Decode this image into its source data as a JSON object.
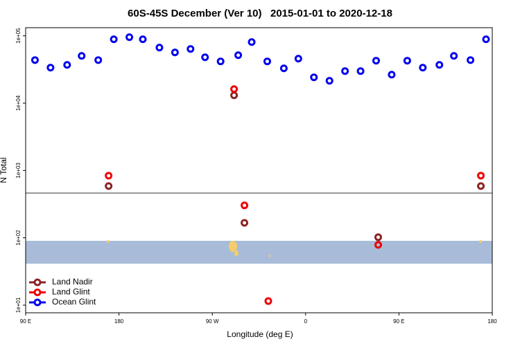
{
  "chart_data": {
    "type": "scatter",
    "title": "60S-45S December (Ver 10)   2015-01-01 to 2020-12-18",
    "x_label": "Longitude (deg E)",
    "y_label": "N Total",
    "log_y": true,
    "legend": "bottom-left",
    "xlim": [
      90,
      540
    ],
    "xticks": [
      {
        "value": 90,
        "label": "90 E"
      },
      {
        "value": 180,
        "label": "180"
      },
      {
        "value": 270,
        "label": "90 W"
      },
      {
        "value": 360,
        "label": "0"
      },
      {
        "value": 450,
        "label": "90 E"
      },
      {
        "value": 540,
        "label": "180"
      }
    ],
    "ylim": [
      7.7,
      132000
    ],
    "yticks": [
      {
        "value": 10,
        "label": "1e+01"
      },
      {
        "value": 100,
        "label": "1e+02"
      },
      {
        "value": 1000,
        "label": "1e+03"
      },
      {
        "value": 10000,
        "label": "1e+04"
      },
      {
        "value": 100000,
        "label": "1e+05"
      }
    ],
    "series": [
      {
        "name": "Land Nadir",
        "color": "#8b2323",
        "x": [
          170,
          291,
          301,
          430,
          529
        ],
        "values": [
          587,
          13060,
          167,
          102,
          587
        ]
      },
      {
        "name": "Land Glint",
        "color": "#ee0000",
        "x": [
          170,
          291,
          301,
          430,
          324,
          529
        ],
        "values": [
          838,
          16150,
          303,
          78.5,
          11.5,
          838
        ]
      },
      {
        "name": "Ocean Glint",
        "color": "#0000ee",
        "x": [
          99,
          114,
          130,
          144,
          160,
          175,
          190,
          203,
          219,
          234,
          249,
          263,
          278,
          295,
          308,
          323,
          339,
          353,
          368,
          383,
          398,
          413,
          428,
          443,
          458,
          473,
          489,
          503,
          519,
          534
        ],
        "values": [
          43600,
          33700,
          37000,
          50300,
          43600,
          88900,
          95300,
          88900,
          66900,
          56600,
          63800,
          48000,
          41700,
          51500,
          80700,
          41700,
          32900,
          45800,
          24200,
          21500,
          29900,
          29900,
          42700,
          26500,
          42700,
          33700,
          37000,
          50300,
          43600,
          88900
        ]
      }
    ]
  }
}
